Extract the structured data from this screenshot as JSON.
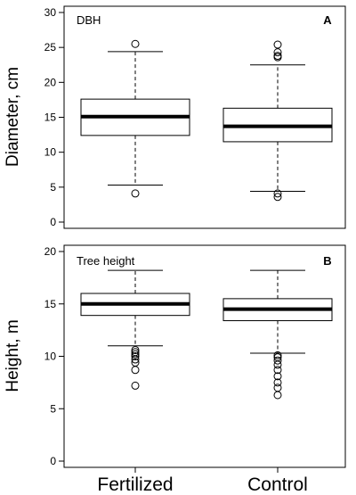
{
  "categories": [
    "Fertilized",
    "Control"
  ],
  "chart_data": [
    {
      "type": "box",
      "title": "DBH",
      "panel_label": "A",
      "ylabel": "Diameter, cm",
      "ylim": [
        0,
        30
      ],
      "yticks": [
        0,
        5,
        10,
        15,
        20,
        25,
        30
      ],
      "categories": [
        "Fertilized",
        "Control"
      ],
      "boxes": [
        {
          "category": "Fertilized",
          "whisker_low": 5.3,
          "q1": 12.4,
          "median": 15.1,
          "q3": 17.6,
          "whisker_high": 24.4,
          "outliers": [
            4.1,
            25.5
          ]
        },
        {
          "category": "Control",
          "whisker_low": 4.4,
          "q1": 11.5,
          "median": 13.7,
          "q3": 16.3,
          "whisker_high": 22.5,
          "outliers": [
            3.6,
            4.1,
            23.6,
            23.8,
            24.3,
            25.4
          ]
        }
      ]
    },
    {
      "type": "box",
      "title": "Tree height",
      "panel_label": "B",
      "ylabel": "Height, m",
      "ylim": [
        0,
        20
      ],
      "yticks": [
        0,
        5,
        10,
        15,
        20
      ],
      "categories": [
        "Fertilized",
        "Control"
      ],
      "boxes": [
        {
          "category": "Fertilized",
          "whisker_low": 11.0,
          "q1": 13.9,
          "median": 15.0,
          "q3": 16.0,
          "whisker_high": 18.2,
          "outliers": [
            7.2,
            8.7,
            9.4,
            9.7,
            10.0,
            10.2,
            10.4,
            10.6
          ]
        },
        {
          "category": "Control",
          "whisker_low": 10.3,
          "q1": 13.4,
          "median": 14.5,
          "q3": 15.5,
          "whisker_high": 18.2,
          "outliers": [
            6.3,
            7.0,
            7.5,
            8.1,
            8.7,
            9.2,
            9.6,
            9.9,
            10.1
          ]
        }
      ]
    }
  ]
}
